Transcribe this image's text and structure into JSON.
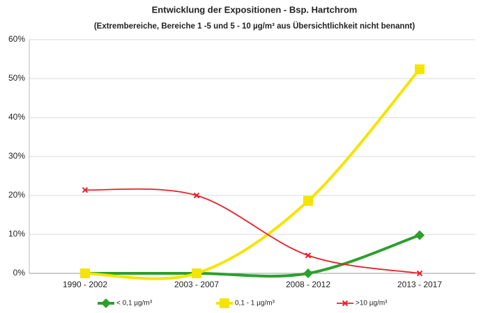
{
  "chart_data": {
    "type": "line",
    "title": "Entwicklung der Expositionen - Bsp. Hartchrom",
    "subtitle": "(Extrembereiche, Bereiche 1 -5 und 5 - 10 µg/m³ aus Übersichtlichkeit nicht benannt)",
    "categories": [
      "1990 - 2002",
      "2003 - 2007",
      "2008 - 2012",
      "2013 - 2017"
    ],
    "series": [
      {
        "name": "< 0,1 µg/m³",
        "color": "#2ca02c",
        "marker": "diamond",
        "values": [
          0,
          0,
          0,
          9.8
        ]
      },
      {
        "name": "0,1 - 1 µg/m³",
        "color": "#f5e400",
        "marker": "square",
        "values": [
          0,
          0,
          18.6,
          52.4
        ]
      },
      {
        "name": ">10 µg/m³",
        "color": "#e8202a",
        "marker": "x",
        "values": [
          21.4,
          20,
          4.6,
          0
        ]
      }
    ],
    "ylim": [
      0,
      60
    ],
    "yticks": [
      {
        "value": 0,
        "label": "0%"
      },
      {
        "value": 10,
        "label": "10%"
      },
      {
        "value": 20,
        "label": "20%"
      },
      {
        "value": 30,
        "label": "30%"
      },
      {
        "value": 40,
        "label": "40%"
      },
      {
        "value": 50,
        "label": "50%"
      },
      {
        "value": 60,
        "label": "60%"
      }
    ],
    "grid": true,
    "legend": "bottom",
    "smooth": true
  }
}
